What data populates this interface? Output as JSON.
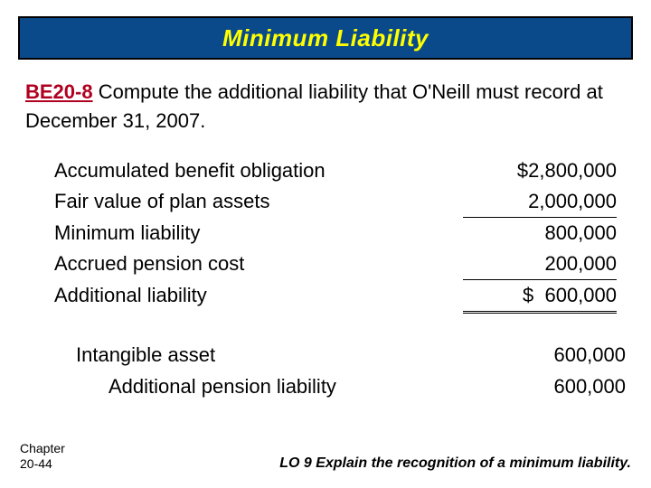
{
  "title": "Minimum Liability",
  "problem": {
    "id": "BE20-8",
    "text": "  Compute the additional liability that O'Neill must record at December 31, 2007."
  },
  "calc": [
    {
      "label": "Accumulated benefit obligation",
      "value": "$2,800,000"
    },
    {
      "label": "Fair value of plan assets",
      "value": " 2,000,000",
      "underline": "before"
    },
    {
      "label": "Minimum liability",
      "value": "800,000"
    },
    {
      "label": "Accrued pension cost",
      "value": "    200,000",
      "underline": "before"
    },
    {
      "label": "Additional liability",
      "value": "$  600,000",
      "underline": "double"
    }
  ],
  "journal": [
    {
      "label": "Intangible asset",
      "value": "600,000",
      "col": 1
    },
    {
      "label": "Additional pension liability",
      "value": "600,000",
      "col": 2,
      "indent": true
    }
  ],
  "footer": {
    "chapter_l1": "Chapter",
    "chapter_l2": "20-44",
    "lo": "LO 9 Explain the recognition of a minimum liability."
  },
  "colors": {
    "title_bg": "#0a4a8a",
    "title_text": "#ffff00",
    "shadow": "#000000",
    "problem_id": "#b00020",
    "page_bg": "#ffffff"
  }
}
